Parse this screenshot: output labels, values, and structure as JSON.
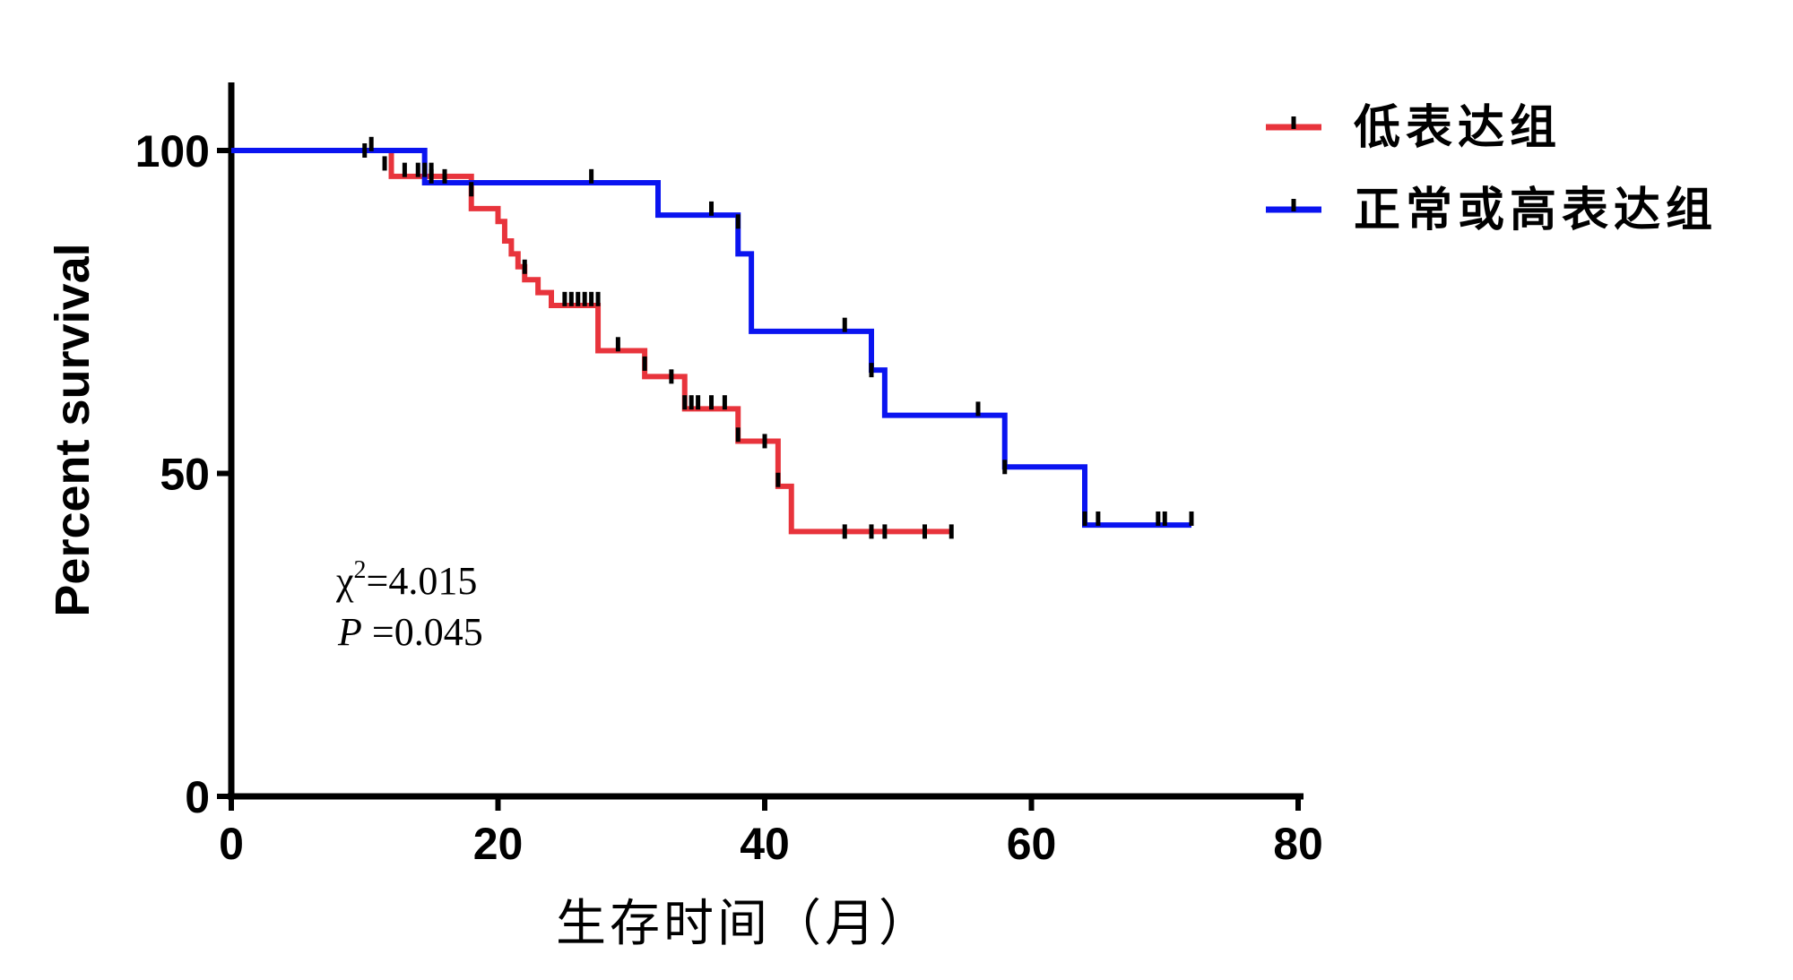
{
  "chart_data": {
    "type": "line",
    "subtype": "kaplan-meier step",
    "title": "",
    "xlabel": "生存时间（月）",
    "ylabel": "Percent survival",
    "xlim": [
      0,
      80
    ],
    "ylim": [
      0,
      100
    ],
    "x_ticks": [
      "0",
      "20",
      "40",
      "60",
      "80"
    ],
    "y_ticks": [
      "0",
      "50",
      "100"
    ],
    "grid": false,
    "legend_position": "top-right",
    "series": [
      {
        "name": "低表达组",
        "color": "#e8343c",
        "steps": [
          [
            0,
            100
          ],
          [
            12,
            96
          ],
          [
            18,
            94
          ],
          [
            18,
            91
          ],
          [
            20,
            89
          ],
          [
            20.5,
            86
          ],
          [
            21,
            84
          ],
          [
            21.5,
            82
          ],
          [
            22,
            80
          ],
          [
            23,
            78
          ],
          [
            24,
            76
          ],
          [
            27.5,
            72
          ],
          [
            27.5,
            69
          ],
          [
            31,
            65
          ],
          [
            34,
            60
          ],
          [
            38,
            55
          ],
          [
            41,
            48
          ],
          [
            42,
            41
          ],
          [
            54,
            41
          ]
        ],
        "censored": [
          [
            10,
            100
          ],
          [
            11.5,
            98
          ],
          [
            13,
            97
          ],
          [
            14,
            97
          ],
          [
            15,
            96
          ],
          [
            16,
            96
          ],
          [
            18,
            94
          ],
          [
            22,
            82
          ],
          [
            25,
            77
          ],
          [
            25.5,
            77
          ],
          [
            26,
            77
          ],
          [
            26.5,
            77
          ],
          [
            27,
            77
          ],
          [
            27.5,
            77
          ],
          [
            29,
            70
          ],
          [
            31,
            67
          ],
          [
            33,
            65
          ],
          [
            34,
            61
          ],
          [
            34.5,
            61
          ],
          [
            35,
            61
          ],
          [
            36,
            61
          ],
          [
            37,
            61
          ],
          [
            38,
            56
          ],
          [
            40,
            55
          ],
          [
            41,
            49
          ],
          [
            46,
            41
          ],
          [
            48,
            41
          ],
          [
            49,
            41
          ],
          [
            52,
            41
          ],
          [
            54,
            41
          ]
        ]
      },
      {
        "name": "正常或高表达组",
        "color": "#0a14f0",
        "steps": [
          [
            0,
            100
          ],
          [
            14.5,
            95
          ],
          [
            32,
            90
          ],
          [
            38,
            84
          ],
          [
            39,
            72
          ],
          [
            48,
            66
          ],
          [
            49,
            59
          ],
          [
            58,
            51
          ],
          [
            64,
            42
          ],
          [
            72,
            42
          ]
        ],
        "censored": [
          [
            10.5,
            101
          ],
          [
            14.5,
            97
          ],
          [
            15,
            97
          ],
          [
            27,
            96
          ],
          [
            36,
            91
          ],
          [
            38,
            89
          ],
          [
            46,
            73
          ],
          [
            48,
            66
          ],
          [
            56,
            60
          ],
          [
            58,
            51
          ],
          [
            64,
            43
          ],
          [
            65,
            43
          ],
          [
            69.5,
            43
          ],
          [
            70,
            43
          ],
          [
            72,
            43
          ]
        ]
      }
    ],
    "annotations": {
      "chi_square_symbol": "χ",
      "chi_square_exponent": "2",
      "chi_square_value": "=4.015",
      "p_label": "P",
      "p_value": " =0.045"
    }
  }
}
